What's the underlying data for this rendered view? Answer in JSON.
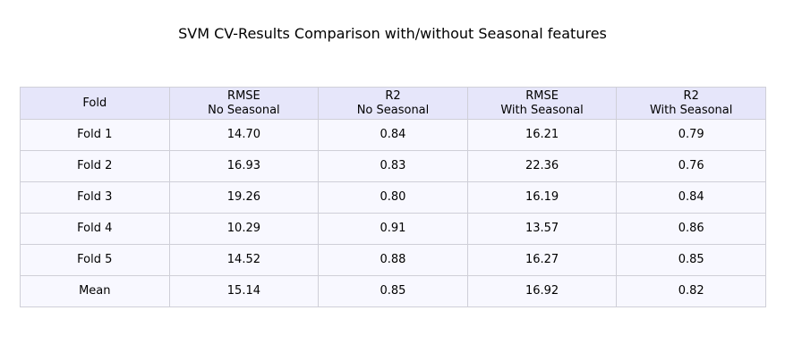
{
  "chart_data": {
    "type": "table",
    "title": "SVM CV-Results Comparison with/without Seasonal features",
    "columns": [
      [
        "Fold"
      ],
      [
        "RMSE",
        "No Seasonal"
      ],
      [
        "R2",
        "No Seasonal"
      ],
      [
        "RMSE",
        "With Seasonal"
      ],
      [
        "R2",
        "With Seasonal"
      ]
    ],
    "rows": [
      [
        "Fold 1",
        "14.70",
        "0.84",
        "16.21",
        "0.79"
      ],
      [
        "Fold 2",
        "16.93",
        "0.83",
        "22.36",
        "0.76"
      ],
      [
        "Fold 3",
        "19.26",
        "0.80",
        "16.19",
        "0.84"
      ],
      [
        "Fold 4",
        "10.29",
        "0.91",
        "13.57",
        "0.86"
      ],
      [
        "Fold 5",
        "14.52",
        "0.88",
        "16.27",
        "0.85"
      ],
      [
        "Mean",
        "15.14",
        "0.85",
        "16.92",
        "0.82"
      ]
    ],
    "colors": {
      "header_background": "#e6e6fa",
      "cell_background": "#f8f8ff",
      "border": "#cfcfd8"
    }
  }
}
